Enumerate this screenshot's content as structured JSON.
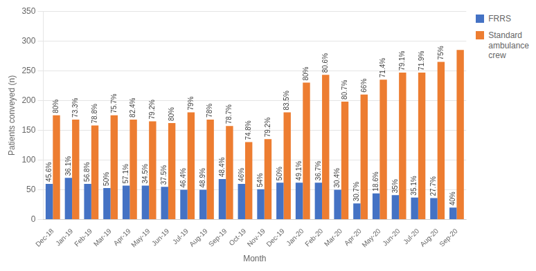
{
  "chart_data": {
    "type": "bar",
    "categories": [
      "Dec-18",
      "Jan-19",
      "Feb-19",
      "Mar-19",
      "Apr-19",
      "May-19",
      "Jun-19",
      "Jul-19",
      "Aug-19",
      "Sep-19",
      "Oct-19",
      "Nov-19",
      "Dec-19",
      "Jan-20",
      "Feb-20",
      "Mar-20",
      "Apr-20",
      "May-20",
      "Jun-20",
      "Jul-20",
      "Aug-20",
      "Sep-20"
    ],
    "series": [
      {
        "name": "FRRS",
        "color": "#4472C4",
        "values": [
          60,
          70,
          60,
          53,
          57,
          57,
          55,
          50,
          50,
          68,
          60,
          51,
          62,
          62,
          62,
          50,
          27,
          44,
          41,
          37,
          36,
          20
        ],
        "annotations": [
          "45.6%",
          "36.1%",
          "56.8%",
          "50%",
          "57.1%",
          "34.5%",
          "37.5%",
          "46.4%",
          "48.9%",
          "48.4%",
          "46%",
          "54%",
          "50%",
          "49.1%",
          "36.7%",
          "30.4%",
          "30.7%",
          "18.6%",
          "35%",
          "35.1%",
          "27.7%",
          "40%"
        ]
      },
      {
        "name": "Standard\nambulance\ncrew",
        "color": "#ED7D31",
        "values": [
          175,
          168,
          158,
          175,
          168,
          165,
          162,
          180,
          168,
          157,
          130,
          135,
          180,
          230,
          243,
          198,
          210,
          235,
          247,
          247,
          265,
          285
        ],
        "annotations": [
          "80%",
          "73.3%",
          "78.8%",
          "75.7%",
          "82.4%",
          "79.2%",
          "80%",
          "79%",
          "78%",
          "78.7%",
          "74.8%",
          "79.2%",
          "83.5%",
          "80%",
          "80.6%",
          "80.7%",
          "66%",
          "71.4%",
          "79.1%",
          "71.9%",
          "75%",
          null
        ]
      }
    ],
    "xlabel": "Month",
    "ylabel": "Patients conveyed (n)",
    "ylim": [
      0,
      350
    ],
    "yticks": [
      0,
      50,
      100,
      150,
      200,
      250,
      300,
      350
    ],
    "grid": true,
    "legend": "right"
  }
}
